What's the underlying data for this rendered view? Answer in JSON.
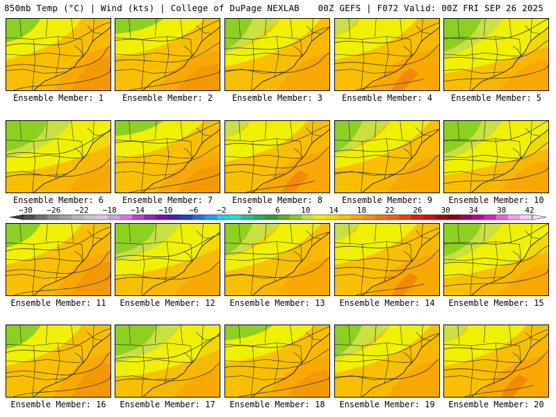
{
  "header": {
    "left": "850mb Temp (°C) | Wind (kts) | College of DuPage NEXLAB",
    "right": "00Z GEFS | F072 Valid: 00Z FRI SEP 26 2025"
  },
  "members": [
    {
      "label": "Ensemble Member: 1",
      "variant": 0
    },
    {
      "label": "Ensemble Member: 2",
      "variant": 1
    },
    {
      "label": "Ensemble Member: 3",
      "variant": 2
    },
    {
      "label": "Ensemble Member: 4",
      "variant": 3
    },
    {
      "label": "Ensemble Member: 5",
      "variant": 4
    },
    {
      "label": "Ensemble Member: 6",
      "variant": 5
    },
    {
      "label": "Ensemble Member: 7",
      "variant": 1
    },
    {
      "label": "Ensemble Member: 8",
      "variant": 3
    },
    {
      "label": "Ensemble Member: 9",
      "variant": 2
    },
    {
      "label": "Ensemble Member: 10",
      "variant": 4
    },
    {
      "label": "Ensemble Member: 11",
      "variant": 0
    },
    {
      "label": "Ensemble Member: 12",
      "variant": 5
    },
    {
      "label": "Ensemble Member: 13",
      "variant": 2
    },
    {
      "label": "Ensemble Member: 14",
      "variant": 3
    },
    {
      "label": "Ensemble Member: 15",
      "variant": 4
    },
    {
      "label": "Ensemble Member: 16",
      "variant": 0
    },
    {
      "label": "Ensemble Member: 17",
      "variant": 5
    },
    {
      "label": "Ensemble Member: 18",
      "variant": 1
    },
    {
      "label": "Ensemble Member: 19",
      "variant": 2
    },
    {
      "label": "Ensemble Member: 20",
      "variant": 3
    }
  ],
  "color_scale": {
    "ticks": [
      "-30",
      "-26",
      "-22",
      "-18",
      "-14",
      "-10",
      "-6",
      "-2",
      "2",
      "6",
      "10",
      "14",
      "18",
      "22",
      "26",
      "30",
      "34",
      "38",
      "42"
    ],
    "colors": [
      "#505050",
      "#707070",
      "#8a8a8a",
      "#a0a0a0",
      "#b8b8b8",
      "#c8c8c8",
      "#d8c8e0",
      "#d0a0e0",
      "#e070f0",
      "#c040e0",
      "#9020d0",
      "#7010c0",
      "#4020c0",
      "#2040e0",
      "#2070f0",
      "#20a0f0",
      "#20d0f0",
      "#20e0d0",
      "#20c0a0",
      "#20b060",
      "#30a030",
      "#60b020",
      "#90c820",
      "#c8e040",
      "#f0f000",
      "#f8d800",
      "#f8c000",
      "#f8a800",
      "#f89000",
      "#f07800",
      "#f06000",
      "#f04000",
      "#e02000",
      "#d01010",
      "#b00010",
      "#900010",
      "#a00060",
      "#c00090",
      "#e020c0",
      "#f060e0",
      "#f8a0f0",
      "#f8d0f8"
    ]
  },
  "map_colors": {
    "green": "#8cd020",
    "yellowgreen": "#c8e040",
    "yellow": "#f0f000",
    "gold": "#f8d800",
    "amber": "#f8c000",
    "orange": "#f8a800",
    "deeporange": "#f09000",
    "red": "#f07800"
  }
}
